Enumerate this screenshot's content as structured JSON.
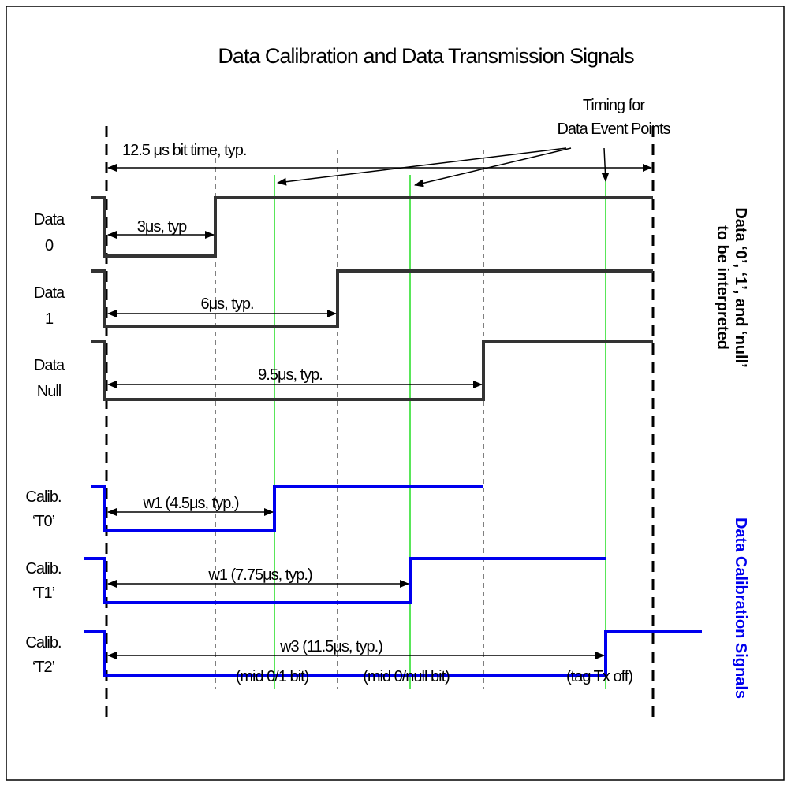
{
  "title": "Data Calibration and Data Transmission Signals",
  "event_note": [
    "Timing for",
    "Data Event Points"
  ],
  "bit_time": "12.5 μs bit time, typ.",
  "signals": [
    {
      "label": [
        "Data",
        "0"
      ],
      "duration": "3μs, typ"
    },
    {
      "label": [
        "Data",
        "1"
      ],
      "duration": "6μs, typ."
    },
    {
      "label": [
        "Data",
        "Null"
      ],
      "duration": "9.5μs, typ."
    },
    {
      "label": [
        "Calib.",
        "‘T0’"
      ],
      "duration": "w1 (4.5μs, typ.)"
    },
    {
      "label": [
        "Calib.",
        "‘T1’"
      ],
      "duration": "w1 (7.75μs, typ.)"
    },
    {
      "label": [
        "Calib.",
        "‘T2’"
      ],
      "duration": "w3 (11.5μs, typ.)"
    }
  ],
  "event_points": [
    "(mid 0/1 bit)",
    "(mid 0/null bit)",
    "(tag Tx off)"
  ],
  "side_labels": {
    "data": [
      "Data ‘0’, ‘1’, and ‘null’",
      "to be interpreted"
    ],
    "calibration": "Data Calibration Signals"
  }
}
